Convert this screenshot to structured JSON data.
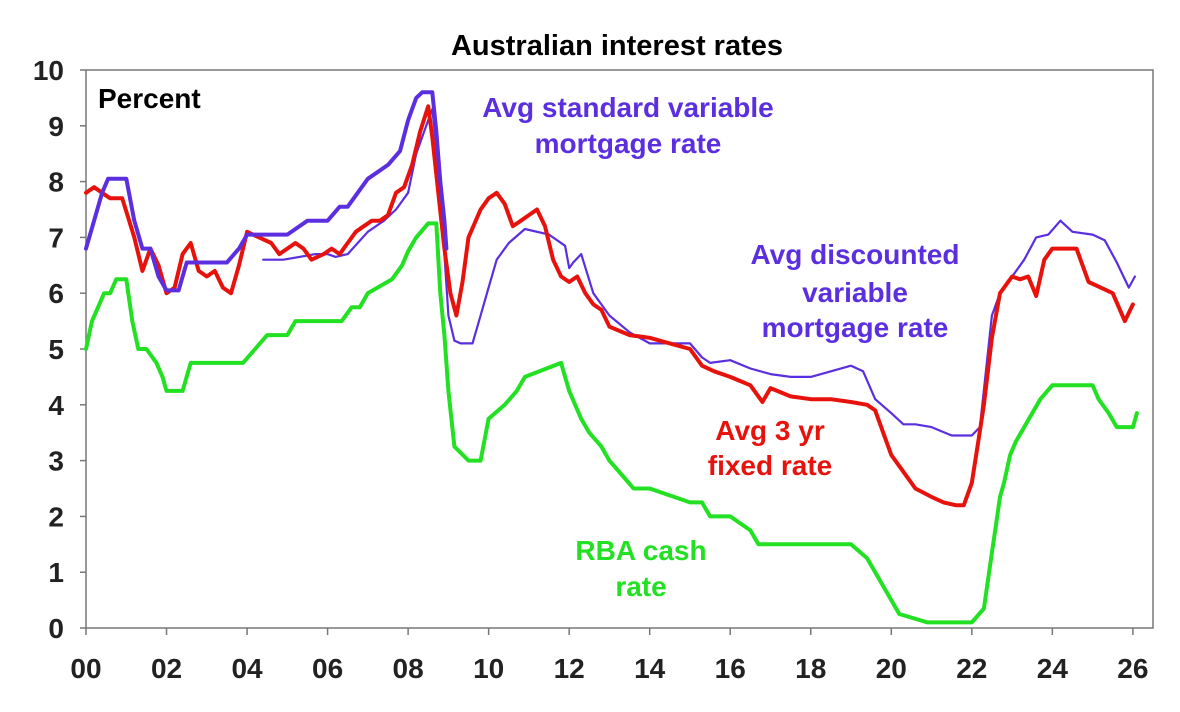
{
  "chart_data": {
    "type": "line",
    "title": "Australian interest rates",
    "unit_label": "Percent",
    "ylim": [
      0,
      10
    ],
    "y_ticks": [
      "0",
      "1",
      "2",
      "3",
      "4",
      "5",
      "6",
      "7",
      "8",
      "9",
      "10"
    ],
    "xlim": [
      2000,
      2026.5
    ],
    "x_ticks": [
      {
        "x": 2000,
        "label": "00"
      },
      {
        "x": 2002,
        "label": "02"
      },
      {
        "x": 2004,
        "label": "04"
      },
      {
        "x": 2006,
        "label": "06"
      },
      {
        "x": 2008,
        "label": "08"
      },
      {
        "x": 2010,
        "label": "10"
      },
      {
        "x": 2012,
        "label": "12"
      },
      {
        "x": 2014,
        "label": "14"
      },
      {
        "x": 2016,
        "label": "16"
      },
      {
        "x": 2018,
        "label": "18"
      },
      {
        "x": 2020,
        "label": "20"
      },
      {
        "x": 2022,
        "label": "22"
      },
      {
        "x": 2024,
        "label": "24"
      },
      {
        "x": 2026,
        "label": "26"
      }
    ],
    "grid": false,
    "legend": "annotations",
    "series": [
      {
        "name": "Avg standard variable mortgage rate",
        "color": "#5b2ee0",
        "width": 4,
        "labels": [
          "Avg standard variable",
          "mortgage rate"
        ],
        "x": [
          2000.0,
          2000.2,
          2000.4,
          2000.55,
          2001.0,
          2001.2,
          2001.4,
          2001.6,
          2001.8,
          2002.0,
          2002.3,
          2002.5,
          2002.8,
          2003.2,
          2003.5,
          2003.8,
          2004.0,
          2004.2,
          2005.0,
          2005.5,
          2006.0,
          2006.3,
          2006.5,
          2007.0,
          2007.5,
          2007.8,
          2008.0,
          2008.2,
          2008.35,
          2008.6,
          2008.7,
          2008.8,
          2008.9,
          2008.95
        ],
        "y": [
          6.8,
          7.3,
          7.8,
          8.05,
          8.05,
          7.3,
          6.8,
          6.8,
          6.3,
          6.05,
          6.05,
          6.55,
          6.55,
          6.55,
          6.55,
          6.8,
          7.05,
          7.05,
          7.05,
          7.3,
          7.3,
          7.55,
          7.55,
          8.05,
          8.3,
          8.55,
          9.1,
          9.5,
          9.6,
          9.6,
          8.9,
          8.0,
          7.3,
          6.8
        ]
      },
      {
        "name": "Avg discounted variable mortgage rate",
        "color": "#5b2ee0",
        "width": 2.2,
        "labels": [
          "Avg discounted",
          "variable",
          "mortgage rate"
        ],
        "x": [
          2004.4,
          2004.9,
          2005.3,
          2005.7,
          2006.0,
          2006.2,
          2006.5,
          2007.0,
          2007.4,
          2007.7,
          2008.0,
          2008.2,
          2008.4,
          2008.5,
          2008.6,
          2008.75,
          2008.9,
          2009.0,
          2009.15,
          2009.3,
          2009.6,
          2009.8,
          2010.0,
          2010.2,
          2010.5,
          2010.9,
          2011.5,
          2011.9,
          2012.0,
          2012.1,
          2012.3,
          2012.6,
          2013.0,
          2013.5,
          2014.0,
          2014.5,
          2015.0,
          2015.3,
          2015.5,
          2016.0,
          2016.5,
          2017.0,
          2017.5,
          2018.0,
          2018.5,
          2019.0,
          2019.3,
          2019.6,
          2020.0,
          2020.3,
          2020.6,
          2021.0,
          2021.5,
          2022.0,
          2022.2,
          2022.35,
          2022.5,
          2022.7,
          2023.0,
          2023.3,
          2023.6,
          2023.9,
          2024.2,
          2024.5,
          2025.0,
          2025.3,
          2025.6,
          2025.9,
          2026.05
        ],
        "y": [
          6.6,
          6.6,
          6.65,
          6.7,
          6.7,
          6.65,
          6.7,
          7.1,
          7.3,
          7.5,
          7.8,
          8.5,
          8.9,
          9.1,
          9.3,
          8.3,
          6.7,
          5.6,
          5.15,
          5.1,
          5.1,
          5.6,
          6.1,
          6.6,
          6.9,
          7.15,
          7.05,
          6.85,
          6.45,
          6.55,
          6.7,
          6.0,
          5.6,
          5.3,
          5.1,
          5.1,
          5.1,
          4.85,
          4.75,
          4.8,
          4.65,
          4.55,
          4.5,
          4.5,
          4.6,
          4.7,
          4.6,
          4.1,
          3.85,
          3.65,
          3.65,
          3.6,
          3.45,
          3.45,
          3.6,
          4.6,
          5.6,
          6.0,
          6.3,
          6.6,
          7.0,
          7.05,
          7.3,
          7.1,
          7.05,
          6.95,
          6.55,
          6.1,
          6.3
        ]
      },
      {
        "name": "Avg 3 yr fixed rate",
        "color": "#e8120c",
        "width": 4,
        "labels": [
          "Avg 3 yr",
          "fixed rate"
        ],
        "x": [
          2000.0,
          2000.2,
          2000.4,
          2000.6,
          2000.9,
          2001.2,
          2001.4,
          2001.6,
          2001.8,
          2002.0,
          2002.2,
          2002.4,
          2002.6,
          2002.8,
          2003.0,
          2003.2,
          2003.4,
          2003.6,
          2003.8,
          2004.0,
          2004.3,
          2004.6,
          2004.8,
          2005.0,
          2005.2,
          2005.4,
          2005.6,
          2005.9,
          2006.1,
          2006.3,
          2006.5,
          2006.7,
          2006.9,
          2007.1,
          2007.3,
          2007.5,
          2007.7,
          2007.9,
          2008.1,
          2008.3,
          2008.5,
          2008.6,
          2008.75,
          2008.9,
          2009.05,
          2009.2,
          2009.35,
          2009.5,
          2009.8,
          2010.0,
          2010.2,
          2010.4,
          2010.6,
          2010.8,
          2011.0,
          2011.2,
          2011.4,
          2011.6,
          2011.8,
          2012.0,
          2012.2,
          2012.4,
          2012.6,
          2012.8,
          2013.0,
          2013.5,
          2014.0,
          2014.5,
          2015.0,
          2015.3,
          2015.6,
          2016.0,
          2016.5,
          2016.8,
          2017.0,
          2017.5,
          2018.0,
          2018.5,
          2019.0,
          2019.4,
          2019.6,
          2019.8,
          2020.0,
          2020.3,
          2020.6,
          2021.0,
          2021.3,
          2021.6,
          2021.8,
          2022.0,
          2022.15,
          2022.3,
          2022.5,
          2022.7,
          2023.0,
          2023.2,
          2023.4,
          2023.6,
          2023.8,
          2024.0,
          2024.3,
          2024.6,
          2024.9,
          2025.2,
          2025.5,
          2025.8,
          2026.0
        ],
        "y": [
          7.8,
          7.9,
          7.8,
          7.7,
          7.7,
          7.0,
          6.4,
          6.8,
          6.5,
          6.0,
          6.1,
          6.7,
          6.9,
          6.4,
          6.3,
          6.4,
          6.1,
          6.0,
          6.5,
          7.1,
          7.0,
          6.9,
          6.7,
          6.8,
          6.9,
          6.8,
          6.6,
          6.7,
          6.8,
          6.7,
          6.9,
          7.1,
          7.2,
          7.3,
          7.3,
          7.4,
          7.8,
          7.9,
          8.3,
          8.9,
          9.35,
          8.8,
          7.8,
          6.8,
          6.0,
          5.6,
          6.2,
          7.0,
          7.5,
          7.7,
          7.8,
          7.6,
          7.2,
          7.3,
          7.4,
          7.5,
          7.2,
          6.6,
          6.3,
          6.2,
          6.3,
          6.0,
          5.8,
          5.7,
          5.4,
          5.25,
          5.2,
          5.1,
          5.0,
          4.7,
          4.6,
          4.5,
          4.35,
          4.05,
          4.3,
          4.15,
          4.1,
          4.1,
          4.05,
          4.0,
          3.9,
          3.5,
          3.1,
          2.8,
          2.5,
          2.35,
          2.25,
          2.2,
          2.2,
          2.6,
          3.3,
          4.0,
          5.2,
          6.0,
          6.3,
          6.25,
          6.3,
          5.95,
          6.6,
          6.8,
          6.8,
          6.8,
          6.2,
          6.1,
          6.0,
          5.5,
          5.8
        ]
      },
      {
        "name": "RBA cash rate",
        "color": "#22e022",
        "width": 4,
        "labels": [
          "RBA cash",
          "rate"
        ],
        "x": [
          2000.0,
          2000.15,
          2000.3,
          2000.45,
          2000.6,
          2000.75,
          2001.0,
          2001.15,
          2001.3,
          2001.5,
          2001.75,
          2001.9,
          2002.0,
          2002.4,
          2002.6,
          2003.0,
          2003.5,
          2003.9,
          2004.5,
          2005.0,
          2005.2,
          2006.0,
          2006.35,
          2006.6,
          2006.8,
          2007.0,
          2007.6,
          2007.85,
          2008.0,
          2008.2,
          2008.5,
          2008.7,
          2008.8,
          2008.9,
          2009.0,
          2009.15,
          2009.5,
          2009.8,
          2010.0,
          2010.4,
          2010.7,
          2010.9,
          2011.8,
          2011.9,
          2012.0,
          2012.3,
          2012.5,
          2012.8,
          2013.0,
          2013.3,
          2013.6,
          2014.0,
          2015.0,
          2015.3,
          2015.5,
          2016.0,
          2016.5,
          2016.7,
          2017.0,
          2018.0,
          2019.0,
          2019.4,
          2019.6,
          2019.8,
          2020.0,
          2020.2,
          2020.9,
          2021.5,
          2022.0,
          2022.3,
          2022.4,
          2022.5,
          2022.6,
          2022.7,
          2022.8,
          2022.95,
          2023.1,
          2023.3,
          2023.5,
          2023.7,
          2024.0,
          2024.5,
          2024.8,
          2025.0,
          2025.15,
          2025.4,
          2025.6,
          2025.8,
          2026.0,
          2026.1
        ],
        "y": [
          5.0,
          5.5,
          5.75,
          6.0,
          6.0,
          6.25,
          6.25,
          5.5,
          5.0,
          5.0,
          4.75,
          4.5,
          4.25,
          4.25,
          4.75,
          4.75,
          4.75,
          4.75,
          5.25,
          5.25,
          5.5,
          5.5,
          5.5,
          5.75,
          5.75,
          6.0,
          6.25,
          6.5,
          6.75,
          7.0,
          7.25,
          7.25,
          6.0,
          5.25,
          4.25,
          3.25,
          3.0,
          3.0,
          3.75,
          4.0,
          4.25,
          4.5,
          4.75,
          4.5,
          4.25,
          3.75,
          3.5,
          3.25,
          3.0,
          2.75,
          2.5,
          2.5,
          2.25,
          2.25,
          2.0,
          2.0,
          1.75,
          1.5,
          1.5,
          1.5,
          1.5,
          1.25,
          1.0,
          0.75,
          0.5,
          0.25,
          0.1,
          0.1,
          0.1,
          0.35,
          0.85,
          1.35,
          1.85,
          2.35,
          2.6,
          3.1,
          3.35,
          3.6,
          3.85,
          4.1,
          4.35,
          4.35,
          4.35,
          4.35,
          4.1,
          3.85,
          3.6,
          3.6,
          3.6,
          3.85
        ]
      }
    ]
  }
}
